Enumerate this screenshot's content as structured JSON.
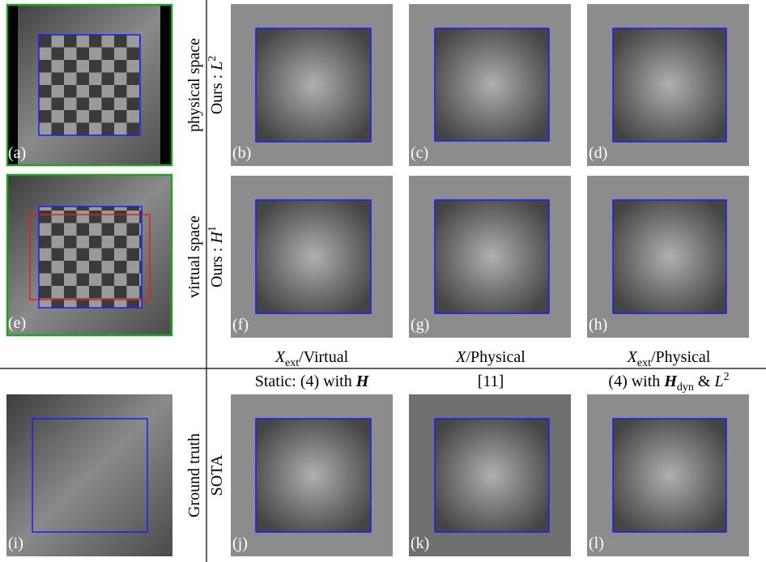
{
  "panel_labels": [
    "(a)",
    "(b)",
    "(c)",
    "(d)",
    "(e)",
    "(f)",
    "(g)",
    "(h)",
    "(i)",
    "(j)",
    "(k)",
    "(l)"
  ],
  "row_labels": [
    {
      "top": "physical space",
      "bottom": {
        "text": "Ours : ",
        "var": "L",
        "sup": "2"
      }
    },
    {
      "top": "virtual space",
      "bottom": {
        "text": "Ours : ",
        "var": "H",
        "sup": "1"
      }
    },
    {
      "top": "Ground truth",
      "bottom": {
        "text": "SOTA"
      }
    }
  ],
  "column_headers": [
    {
      "var": "X",
      "sub": "ext",
      "rest": "/Virtual"
    },
    {
      "var": "X",
      "rest": "/Physical"
    },
    {
      "var": "X",
      "sub": "ext",
      "rest": "/Physical"
    }
  ],
  "method_labels": [
    {
      "text": "Static: (4) with ",
      "bold": "H"
    },
    {
      "text": "[11]"
    },
    {
      "text": "(4) with ",
      "bold": "H",
      "sub": "dyn",
      "rest": " & ",
      "var": "L",
      "sup": "2"
    }
  ]
}
